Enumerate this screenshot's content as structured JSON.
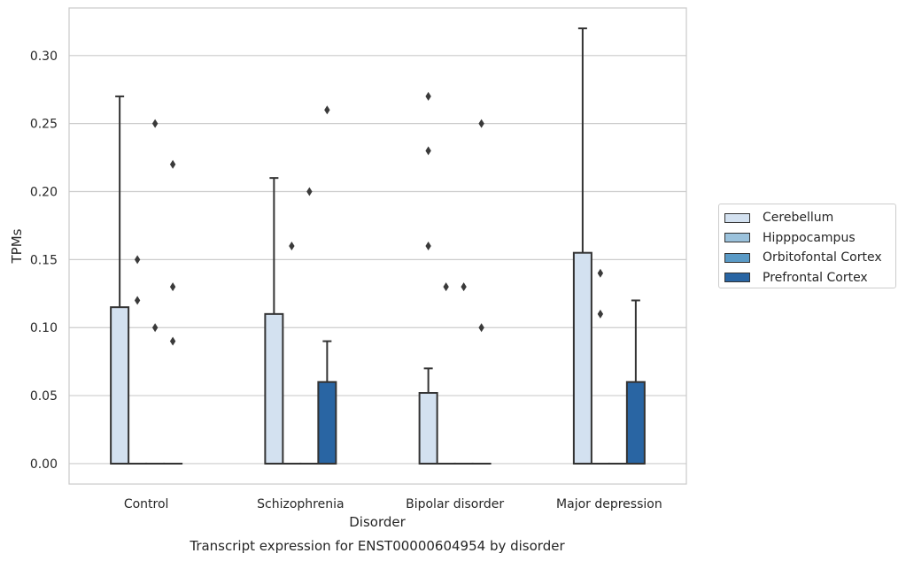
{
  "chart_data": {
    "type": "box",
    "title": "Transcript expression for ENST00000604954 by disorder",
    "xlabel": "Disorder",
    "ylabel": "TPMs",
    "ylim": [
      -0.015,
      0.335
    ],
    "yticks": [
      "0.00",
      "0.05",
      "0.10",
      "0.15",
      "0.20",
      "0.25",
      "0.30"
    ],
    "categories": [
      "Control",
      "Schizophrenia",
      "Bipolar disorder",
      "Major depression"
    ],
    "grid": "horizontal",
    "legend_position": "right",
    "series": [
      {
        "name": "Cerebellum",
        "color": "#d3e1f0",
        "boxes": [
          {
            "q1": 0.0,
            "median": 0.0,
            "q3": 0.115,
            "whisker_low": 0.0,
            "whisker_high": 0.27,
            "outliers": []
          },
          {
            "q1": 0.0,
            "median": 0.0,
            "q3": 0.11,
            "whisker_low": 0.0,
            "whisker_high": 0.21,
            "outliers": []
          },
          {
            "q1": 0.0,
            "median": 0.0,
            "q3": 0.052,
            "whisker_low": 0.0,
            "whisker_high": 0.07,
            "outliers": [
              0.16,
              0.23,
              0.27
            ]
          },
          {
            "q1": 0.0,
            "median": 0.0,
            "q3": 0.155,
            "whisker_low": 0.0,
            "whisker_high": 0.32,
            "outliers": []
          }
        ]
      },
      {
        "name": "Hipppocampus",
        "color": "#9bc2dc",
        "boxes": [
          {
            "q1": 0.0,
            "median": 0.0,
            "q3": 0.0,
            "whisker_low": 0.0,
            "whisker_high": 0.0,
            "outliers": [
              0.12,
              0.15
            ]
          },
          {
            "q1": 0.0,
            "median": 0.0,
            "q3": 0.0,
            "whisker_low": 0.0,
            "whisker_high": 0.0,
            "outliers": [
              0.16
            ]
          },
          {
            "q1": 0.0,
            "median": 0.0,
            "q3": 0.0,
            "whisker_low": 0.0,
            "whisker_high": 0.0,
            "outliers": [
              0.13
            ]
          },
          {
            "q1": 0.0,
            "median": 0.0,
            "q3": 0.0,
            "whisker_low": 0.0,
            "whisker_high": 0.0,
            "outliers": [
              0.11,
              0.14
            ]
          }
        ]
      },
      {
        "name": "Orbitofontal Cortex",
        "color": "#5a9ac6",
        "boxes": [
          {
            "q1": 0.0,
            "median": 0.0,
            "q3": 0.0,
            "whisker_low": 0.0,
            "whisker_high": 0.0,
            "outliers": [
              0.1,
              0.25
            ]
          },
          {
            "q1": 0.0,
            "median": 0.0,
            "q3": 0.0,
            "whisker_low": 0.0,
            "whisker_high": 0.0,
            "outliers": [
              0.2
            ]
          },
          {
            "q1": 0.0,
            "median": 0.0,
            "q3": 0.0,
            "whisker_low": 0.0,
            "whisker_high": 0.0,
            "outliers": [
              0.13
            ]
          },
          {
            "q1": 0.0,
            "median": 0.0,
            "q3": 0.0,
            "whisker_low": 0.0,
            "whisker_high": 0.0,
            "outliers": []
          }
        ]
      },
      {
        "name": "Prefrontal Cortex",
        "color": "#2965a3",
        "boxes": [
          {
            "q1": 0.0,
            "median": 0.0,
            "q3": 0.0,
            "whisker_low": 0.0,
            "whisker_high": 0.0,
            "outliers": [
              0.09,
              0.13,
              0.22
            ]
          },
          {
            "q1": 0.0,
            "median": 0.0,
            "q3": 0.06,
            "whisker_low": 0.0,
            "whisker_high": 0.09,
            "outliers": [
              0.26
            ]
          },
          {
            "q1": 0.0,
            "median": 0.0,
            "q3": 0.0,
            "whisker_low": 0.0,
            "whisker_high": 0.0,
            "outliers": [
              0.1,
              0.25
            ]
          },
          {
            "q1": 0.0,
            "median": 0.0,
            "q3": 0.06,
            "whisker_low": 0.0,
            "whisker_high": 0.12,
            "outliers": []
          }
        ]
      }
    ]
  }
}
